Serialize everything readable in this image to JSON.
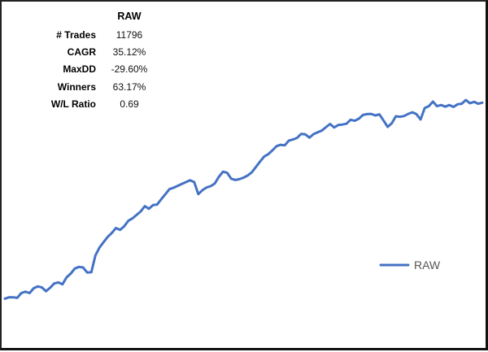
{
  "stats_table": {
    "header": "RAW",
    "rows": [
      {
        "label": "# Trades",
        "value": "11796"
      },
      {
        "label": "CAGR",
        "value": "35.12%"
      },
      {
        "label": "MaxDD",
        "value": "-29.60%"
      },
      {
        "label": "Winners",
        "value": "63.17%"
      },
      {
        "label": "W/L Ratio",
        "value": "0.69"
      }
    ]
  },
  "chart_data": {
    "type": "line",
    "title": "",
    "xlabel": "",
    "ylabel": "",
    "grid": false,
    "axes_visible": false,
    "ylim": [
      0,
      100
    ],
    "legend_placement": "right-middle",
    "series": [
      {
        "name": "RAW",
        "color": "#4472C4",
        "values": [
          0.8,
          1.3,
          1.3,
          1.1,
          2.9,
          3.4,
          2.9,
          4.7,
          5.4,
          5.0,
          3.6,
          4.9,
          6.5,
          6.9,
          6.2,
          8.8,
          10.2,
          12.1,
          12.7,
          12.5,
          10.6,
          10.7,
          17.0,
          20.0,
          22.0,
          24.0,
          25.5,
          27.3,
          26.6,
          28.0,
          30.0,
          30.9,
          32.2,
          33.5,
          35.5,
          34.5,
          35.9,
          36.1,
          38.1,
          40.0,
          41.9,
          42.4,
          43.1,
          43.8,
          44.5,
          45.2,
          44.5,
          40.0,
          41.5,
          42.5,
          43.0,
          44.0,
          46.5,
          48.4,
          48.0,
          45.8,
          45.3,
          45.6,
          46.2,
          47.0,
          48.2,
          50.2,
          52.2,
          54.1,
          55.0,
          56.4,
          58.0,
          58.5,
          58.3,
          60.1,
          60.5,
          61.1,
          62.6,
          62.4,
          61.2,
          62.5,
          63.2,
          63.8,
          65.1,
          66.3,
          65.0,
          65.9,
          66.1,
          66.4,
          67.9,
          67.5,
          68.3,
          69.7,
          70.0,
          70.1,
          69.5,
          69.9,
          67.6,
          65.2,
          66.6,
          69.2,
          69.0,
          69.3,
          70.1,
          70.7,
          70.0,
          68.0,
          72.3,
          73.0,
          74.7,
          73.0,
          73.4,
          72.8,
          73.4,
          72.7,
          73.7,
          73.9,
          75.3,
          74.1,
          74.6,
          73.9,
          74.3
        ]
      }
    ]
  }
}
